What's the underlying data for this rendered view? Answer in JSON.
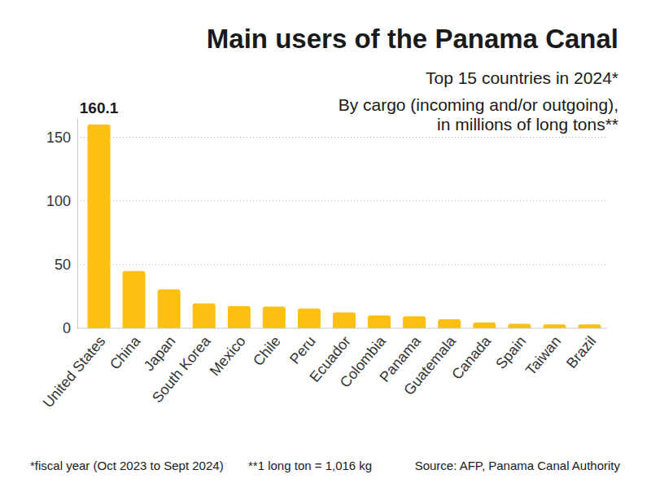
{
  "chart_data": {
    "type": "bar",
    "title": "Main users of the Panama Canal",
    "subtitle": [
      "Top 15 countries in 2024*",
      "By cargo (incoming and/or outgoing),",
      "in millions of long tons**"
    ],
    "categories": [
      "United States",
      "China",
      "Japan",
      "South Korea",
      "Mexico",
      "Chile",
      "Peru",
      "Ecuador",
      "Colombia",
      "Panama",
      "Guatemala",
      "Canada",
      "Spain",
      "Taiwan",
      "Brazil"
    ],
    "values": [
      160.1,
      45,
      30.5,
      19.5,
      17.5,
      17,
      15.5,
      12.5,
      10,
      9.5,
      7,
      4.5,
      3.5,
      3,
      3
    ],
    "value_labels": [
      "160.1",
      null,
      null,
      null,
      null,
      null,
      null,
      null,
      null,
      null,
      null,
      null,
      null,
      null,
      null
    ],
    "data_labels": true,
    "color": "#fdc010",
    "ylim": [
      0,
      165
    ],
    "yticks": [
      0,
      50,
      100,
      150
    ],
    "grid": true,
    "footnotes": [
      "*fiscal year (Oct 2023 to Sept 2024)",
      "**1 long ton = 1,016 kg"
    ],
    "source": "Source: AFP, Panama Canal Authority"
  }
}
